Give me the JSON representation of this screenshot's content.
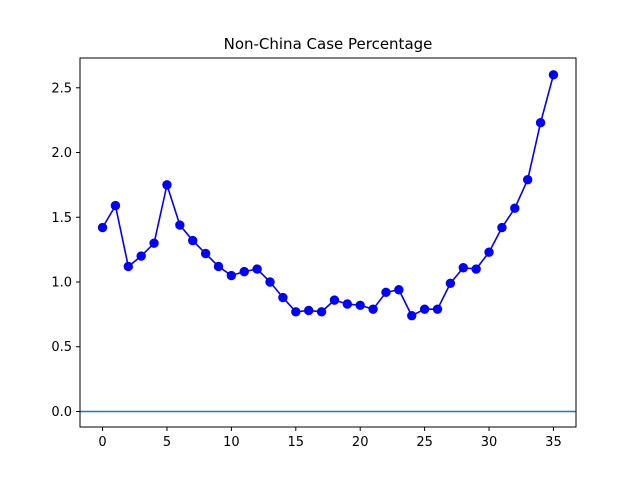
{
  "chart_data": {
    "type": "line",
    "title": "Non-China Case Percentage",
    "xlabel": "",
    "ylabel": "",
    "xlim": [
      -1.75,
      36.75
    ],
    "ylim": [
      -0.12,
      2.73
    ],
    "xticks": [
      0,
      5,
      10,
      15,
      20,
      25,
      30,
      35
    ],
    "yticks": [
      0.0,
      0.5,
      1.0,
      1.5,
      2.0,
      2.5
    ],
    "ytick_labels": [
      "0.0",
      "0.5",
      "1.0",
      "1.5",
      "2.0",
      "2.5"
    ],
    "grid": false,
    "series": [
      {
        "color": "#0000ff",
        "marker": "circle",
        "x": [
          0,
          1,
          2,
          3,
          4,
          5,
          6,
          7,
          8,
          9,
          10,
          11,
          12,
          13,
          14,
          15,
          16,
          17,
          18,
          19,
          20,
          21,
          22,
          23,
          24,
          25,
          26,
          27,
          28,
          29,
          30,
          31,
          32,
          33,
          34,
          35
        ],
        "values": [
          1.42,
          1.59,
          1.12,
          1.2,
          1.3,
          1.75,
          1.44,
          1.32,
          1.22,
          1.12,
          1.05,
          1.08,
          1.1,
          1.0,
          0.88,
          0.77,
          0.78,
          0.77,
          0.86,
          0.83,
          0.82,
          0.79,
          0.92,
          0.94,
          0.74,
          0.79,
          0.79,
          0.99,
          1.11,
          1.1,
          1.23,
          1.42,
          1.57,
          1.79,
          2.23,
          2.6
        ]
      }
    ],
    "hline": {
      "y": 0.0,
      "color": "#1f77b4"
    }
  }
}
